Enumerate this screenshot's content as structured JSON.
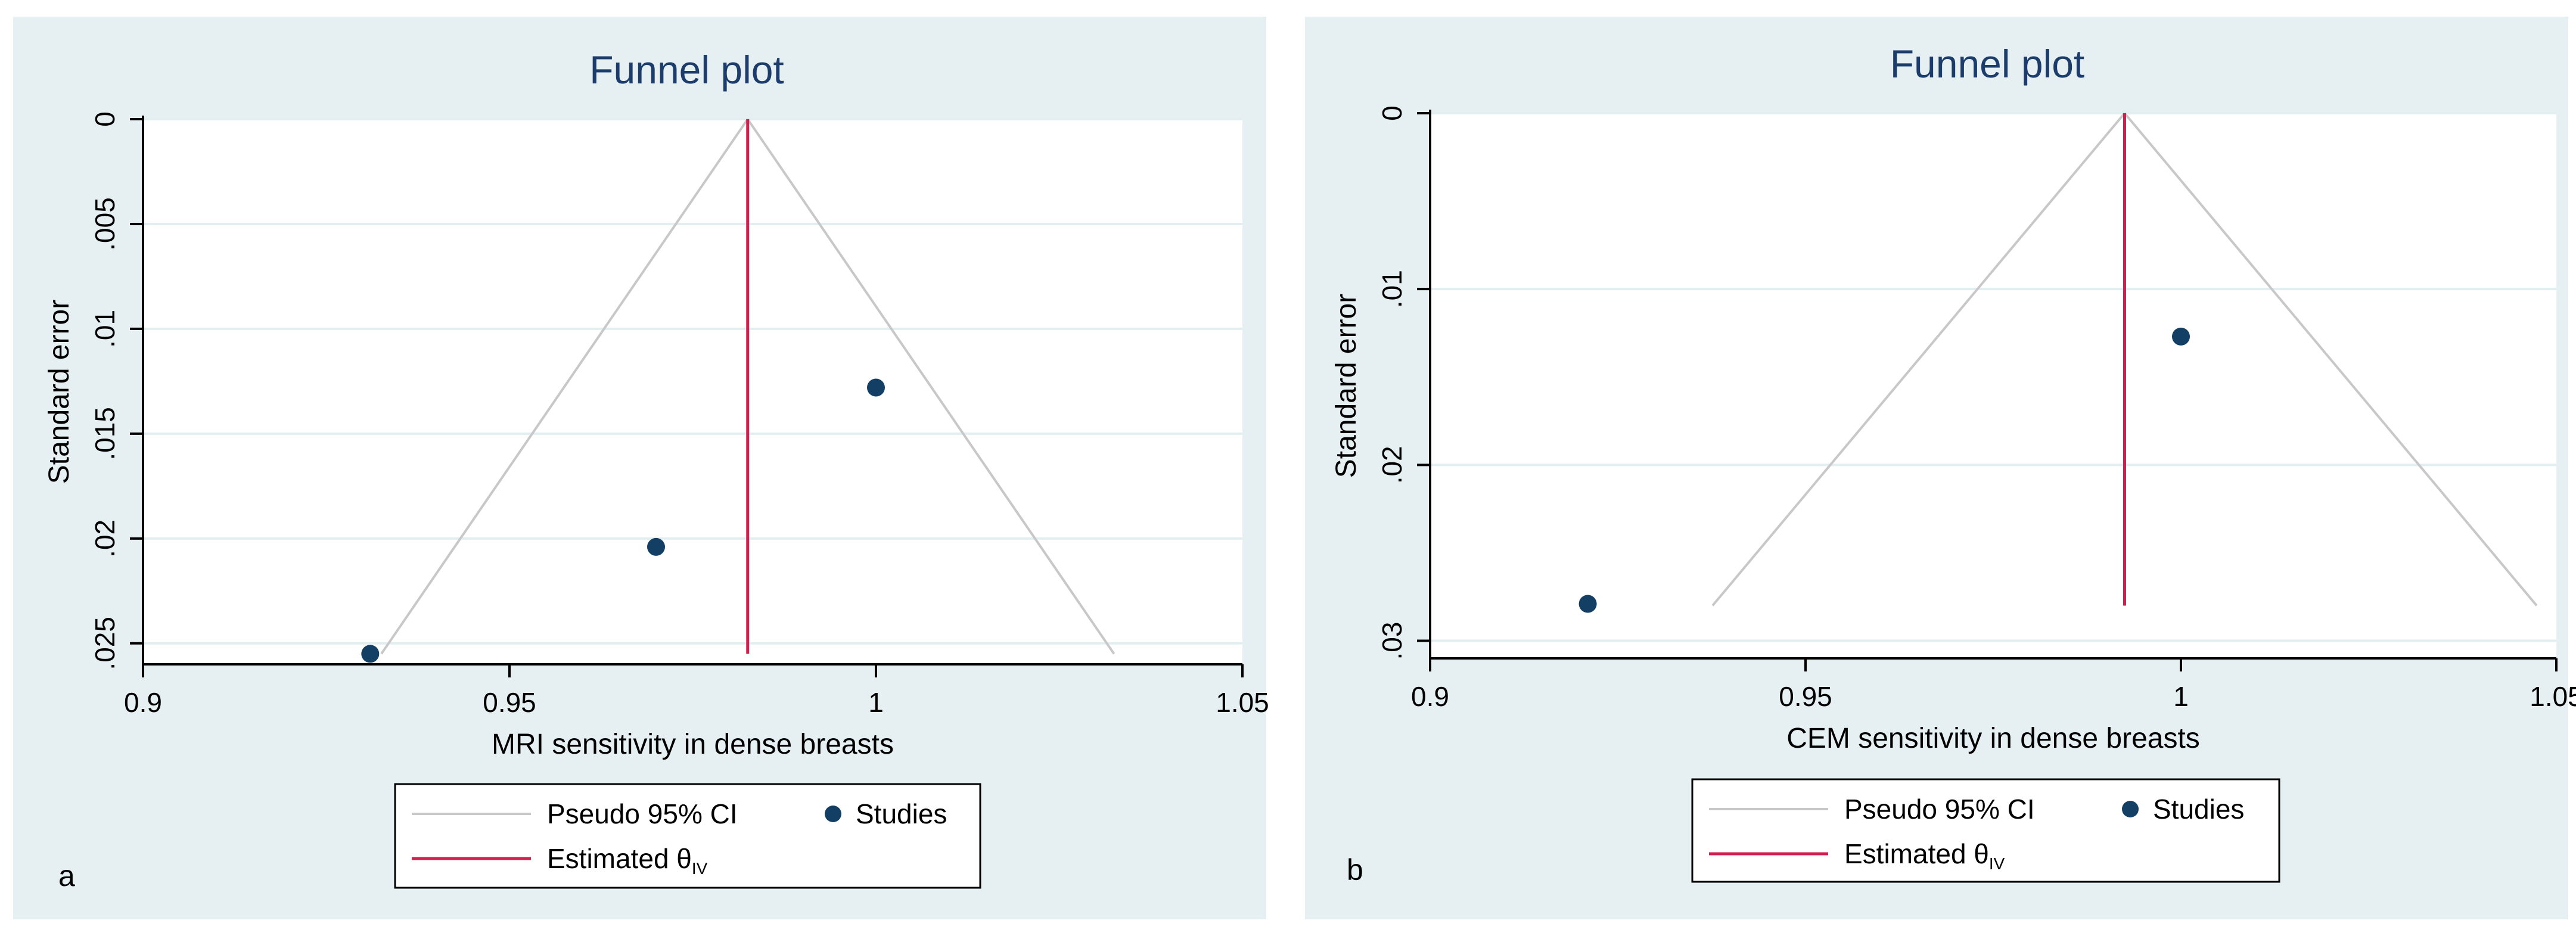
{
  "colors": {
    "panel_bg": "#e6f0f2",
    "plot_bg": "#ffffff",
    "grid": "#e3eef1",
    "axis": "#000000",
    "title": "#1c3d6b",
    "ci_line": "#c8c8c8",
    "estimate_line": "#d21f4f",
    "study_marker": "#123f63"
  },
  "legend": {
    "ci_label": "Pseudo 95% CI",
    "studies_label": "Studies",
    "estimate_label": "Estimated θ",
    "estimate_subscript": "IV"
  },
  "chart_data": [
    {
      "type": "scatter",
      "panel_label": "a",
      "title": "Funnel plot",
      "xlabel": "MRI sensitivity in dense breasts",
      "ylabel": "Standard error",
      "xlim": [
        0.9,
        1.05
      ],
      "ylim": [
        0,
        0.026
      ],
      "y_reversed": true,
      "xticks": [
        0.9,
        0.95,
        1,
        1.05
      ],
      "xtick_labels": [
        "0.9",
        "0.95",
        "1",
        "1.05"
      ],
      "yticks": [
        0,
        0.005,
        0.01,
        0.015,
        0.02,
        0.025
      ],
      "ytick_labels": [
        "0",
        ".005",
        ".01",
        ".015",
        ".02",
        ".025"
      ],
      "grid": true,
      "studies": [
        {
          "x": 0.931,
          "se": 0.0255
        },
        {
          "x": 0.97,
          "se": 0.0204
        },
        {
          "x": 1.0,
          "se": 0.0128
        }
      ],
      "estimate": 0.9825,
      "funnel_se_max": 0.0255
    },
    {
      "type": "scatter",
      "panel_label": "b",
      "title": "Funnel plot",
      "xlabel": "CEM sensitivity in dense breasts",
      "ylabel": "Standard error",
      "xlim": [
        0.9,
        1.05
      ],
      "ylim": [
        0,
        0.031
      ],
      "y_reversed": true,
      "xticks": [
        0.9,
        0.95,
        1,
        1.05
      ],
      "xtick_labels": [
        "0.9",
        "0.95",
        "1",
        "1.05"
      ],
      "yticks": [
        0,
        0.01,
        0.02,
        0.03
      ],
      "ytick_labels": [
        "0",
        ".01",
        ".02",
        ".03"
      ],
      "grid": true,
      "studies": [
        {
          "x": 0.921,
          "se": 0.0279
        },
        {
          "x": 1.0,
          "se": 0.0127
        }
      ],
      "estimate": 0.9925,
      "funnel_se_max": 0.028
    }
  ]
}
